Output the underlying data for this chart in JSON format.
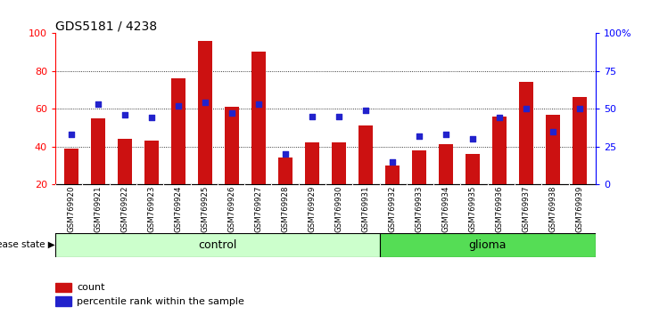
{
  "title": "GDS5181 / 4238",
  "samples": [
    "GSM769920",
    "GSM769921",
    "GSM769922",
    "GSM769923",
    "GSM769924",
    "GSM769925",
    "GSM769926",
    "GSM769927",
    "GSM769928",
    "GSM769929",
    "GSM769930",
    "GSM769931",
    "GSM769932",
    "GSM769933",
    "GSM769934",
    "GSM769935",
    "GSM769936",
    "GSM769937",
    "GSM769938",
    "GSM769939"
  ],
  "bar_heights": [
    39,
    55,
    44,
    43,
    76,
    96,
    61,
    90,
    34,
    42,
    42,
    51,
    30,
    38,
    41,
    36,
    56,
    74,
    57,
    66
  ],
  "dot_percentiles": [
    33,
    53,
    46,
    44,
    52,
    54,
    47,
    53,
    20,
    45,
    45,
    49,
    15,
    32,
    33,
    30,
    44,
    50,
    35,
    50
  ],
  "bar_color": "#cc1111",
  "dot_color": "#2222cc",
  "ylim_left": [
    20,
    100
  ],
  "ylim_right": [
    0,
    100
  ],
  "yticks_left": [
    20,
    40,
    60,
    80,
    100
  ],
  "yticks_right": [
    0,
    25,
    50,
    75,
    100
  ],
  "ytick_labels_right": [
    "0",
    "25",
    "50",
    "75",
    "100%"
  ],
  "grid_values": [
    40,
    60,
    80
  ],
  "bar_bottom": 20,
  "control_count": 12,
  "glioma_count": 8,
  "control_label": "control",
  "glioma_label": "glioma",
  "disease_state_label": "disease state",
  "legend_bar_label": "count",
  "legend_dot_label": "percentile rank within the sample",
  "control_color": "#ccffcc",
  "glioma_color": "#55dd55",
  "tick_bg_color": "#c8c8c8",
  "background_color": "#ffffff",
  "bar_width": 0.55
}
